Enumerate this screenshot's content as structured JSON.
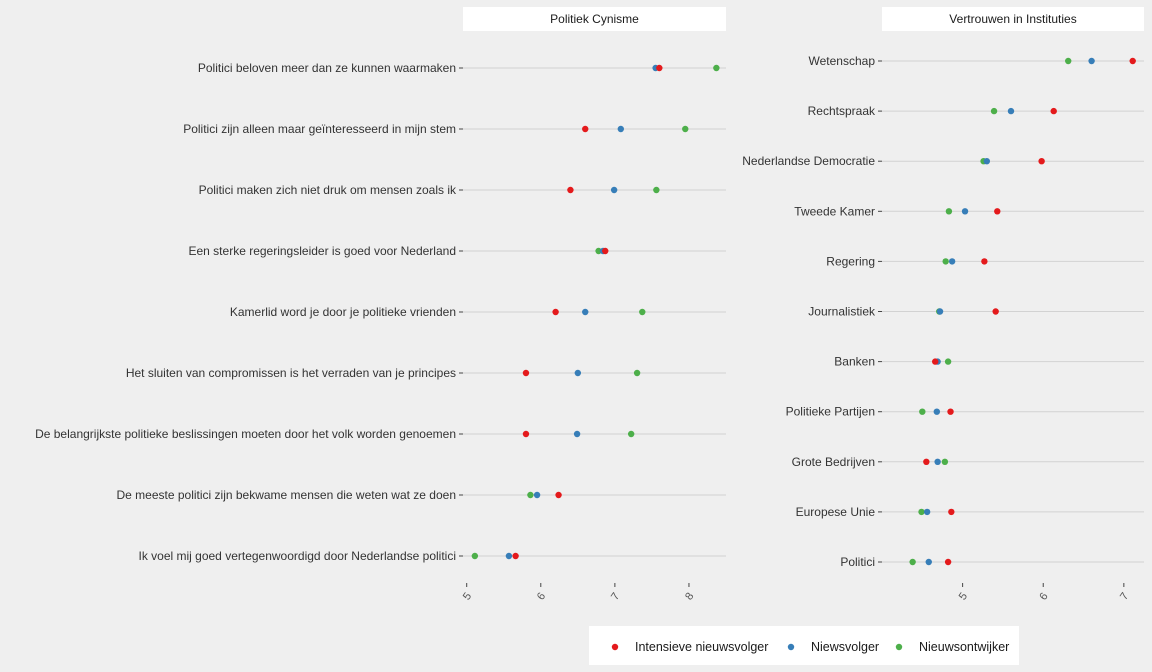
{
  "legend": [
    {
      "name": "Intensieve nieuwsvolger",
      "color": "#e41a1c"
    },
    {
      "name": "Niewsvolger",
      "color": "#377eb8"
    },
    {
      "name": "Nieuwsontwijker",
      "color": "#4daf4a"
    }
  ],
  "chart_data": [
    {
      "type": "scatter",
      "title": "Politiek Cynisme",
      "xlim": [
        4.95,
        8.5
      ],
      "xticks": [
        5,
        6,
        7,
        8
      ],
      "grid": "horizontal",
      "categories": [
        "Politici beloven meer dan ze kunnen waarmaken",
        "Politici zijn alleen maar geïnteresseerd in mijn stem",
        "Politici maken zich niet druk om mensen zoals ik",
        "Een sterke regeringsleider is goed voor Nederland",
        "Kamerlid word je door je politieke vrienden",
        "Het sluiten van compromissen is het verraden van je principes",
        "De belangrijkste politieke beslissingen moeten door het volk worden genoemen",
        "De meeste politici zijn bekwame mensen die weten wat ze doen",
        "Ik voel mij goed vertegenwoordigd door Nederlandse politici"
      ],
      "series": [
        {
          "name": "Intensieve nieuwsvolger",
          "values": [
            7.6,
            6.6,
            6.4,
            6.87,
            6.2,
            5.8,
            5.8,
            6.24,
            5.66
          ]
        },
        {
          "name": "Niewsvolger",
          "values": [
            7.55,
            7.08,
            6.99,
            6.84,
            6.6,
            6.5,
            6.49,
            5.95,
            5.57
          ]
        },
        {
          "name": "Nieuwsontwijker",
          "values": [
            8.37,
            7.95,
            7.56,
            6.78,
            7.37,
            7.3,
            7.22,
            5.86,
            5.11
          ]
        }
      ]
    },
    {
      "type": "scatter",
      "title": "Vertrouwen in Instituties",
      "xlim": [
        4.0,
        7.25
      ],
      "xticks": [
        5,
        6,
        7
      ],
      "grid": "horizontal",
      "categories": [
        "Wetenschap",
        "Rechtspraak",
        "Nederlandse Democratie",
        "Tweede Kamer",
        "Regering",
        "Journalistiek",
        "Banken",
        "Politieke Partijen",
        "Grote Bedrijven",
        "Europese Unie",
        "Politici"
      ],
      "series": [
        {
          "name": "Intensieve nieuwsvolger",
          "values": [
            7.11,
            6.13,
            5.98,
            5.43,
            5.27,
            5.41,
            4.66,
            4.85,
            4.55,
            4.86,
            4.82
          ]
        },
        {
          "name": "Niewsvolger",
          "values": [
            6.6,
            5.6,
            5.3,
            5.03,
            4.87,
            4.72,
            4.69,
            4.68,
            4.69,
            4.56,
            4.58
          ]
        },
        {
          "name": "Nieuwsontwijker",
          "values": [
            6.31,
            5.39,
            5.26,
            4.83,
            4.79,
            4.71,
            4.82,
            4.5,
            4.78,
            4.49,
            4.38
          ]
        }
      ]
    }
  ]
}
